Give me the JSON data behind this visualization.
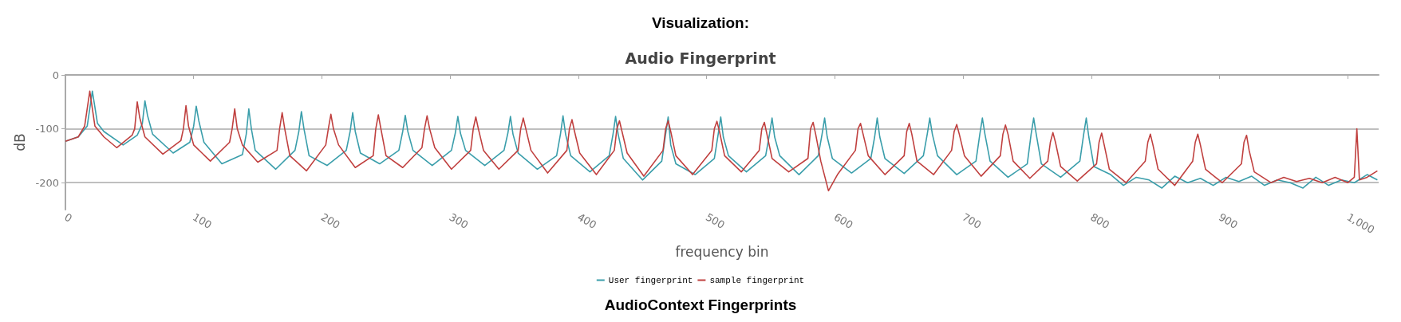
{
  "chart_data": {
    "type": "line",
    "title": "Visualization:",
    "subtitle": "Audio Fingerprint",
    "xlabel": "frequency bin",
    "ylabel": "dB",
    "annotations": [
      "AudioContext Fingerprints"
    ],
    "xlim": [
      0,
      1024
    ],
    "xticks": [
      0,
      100,
      200,
      300,
      400,
      500,
      600,
      700,
      800,
      900,
      {
        "value": 1000,
        "label": "1,000"
      }
    ],
    "ylim": [
      -250,
      0
    ],
    "yticks": [
      0,
      -100,
      -200
    ],
    "grid": "y",
    "legend": "bottom",
    "marker": "none",
    "line_style": "solid",
    "series": [
      {
        "name": "User fingerprint",
        "color": "#3a9eab",
        "x": [
          0,
          10,
          17,
          21,
          25,
          30,
          45,
          56,
          60,
          62,
          64,
          68,
          84,
          97,
          100,
          102,
          104,
          108,
          122,
          138,
          141,
          143,
          145,
          148,
          164,
          179,
          182,
          184,
          186,
          190,
          204,
          219,
          222,
          224,
          226,
          230,
          245,
          260,
          263,
          265,
          267,
          271,
          286,
          301,
          304,
          306,
          308,
          312,
          327,
          342,
          345,
          347,
          349,
          353,
          368,
          383,
          386,
          388,
          390,
          394,
          409,
          424,
          427,
          429,
          431,
          435,
          450,
          465,
          468,
          470,
          472,
          476,
          491,
          506,
          509,
          511,
          513,
          517,
          531,
          546,
          549,
          551,
          553,
          557,
          572,
          587,
          590,
          592,
          594,
          598,
          613,
          628,
          631,
          633,
          635,
          639,
          654,
          669,
          672,
          674,
          676,
          680,
          695,
          710,
          713,
          715,
          717,
          721,
          735,
          750,
          753,
          755,
          757,
          761,
          776,
          791,
          794,
          796,
          798,
          802,
          815,
          825,
          835,
          845,
          855,
          865,
          875,
          885,
          895,
          905,
          915,
          925,
          935,
          945,
          955,
          965,
          975,
          985,
          995,
          1005,
          1015,
          1023
        ],
        "values": [
          -123,
          -115,
          -95,
          -30,
          -90,
          -105,
          -130,
          -112,
          -90,
          -48,
          -75,
          -110,
          -145,
          -125,
          -95,
          -58,
          -85,
          -125,
          -165,
          -148,
          -110,
          -63,
          -100,
          -140,
          -175,
          -140,
          -105,
          -68,
          -100,
          -150,
          -168,
          -140,
          -105,
          -70,
          -105,
          -145,
          -165,
          -140,
          -105,
          -75,
          -105,
          -140,
          -168,
          -140,
          -108,
          -77,
          -108,
          -140,
          -168,
          -140,
          -108,
          -77,
          -110,
          -145,
          -175,
          -150,
          -110,
          -76,
          -110,
          -150,
          -180,
          -150,
          -110,
          -77,
          -110,
          -155,
          -195,
          -160,
          -110,
          -78,
          -130,
          -165,
          -185,
          -155,
          -110,
          -78,
          -115,
          -150,
          -180,
          -150,
          -110,
          -80,
          -115,
          -150,
          -185,
          -150,
          -110,
          -80,
          -115,
          -155,
          -182,
          -155,
          -115,
          -80,
          -115,
          -155,
          -183,
          -150,
          -110,
          -80,
          -110,
          -150,
          -185,
          -160,
          -110,
          -80,
          -110,
          -160,
          -190,
          -165,
          -110,
          -80,
          -110,
          -165,
          -190,
          -160,
          -110,
          -80,
          -115,
          -170,
          -185,
          -205,
          -190,
          -195,
          -210,
          -188,
          -200,
          -192,
          -205,
          -190,
          -198,
          -188,
          -205,
          -195,
          -200,
          -210,
          -190,
          -205,
          -195,
          -200,
          -185,
          -195
        ]
      },
      {
        "name": "sample fingerprint",
        "color": "#c0403f",
        "x": [
          0,
          10,
          15,
          19,
          23,
          30,
          40,
          52,
          54,
          56,
          58,
          62,
          76,
          90,
          92,
          94,
          96,
          100,
          113,
          128,
          130,
          132,
          134,
          138,
          150,
          165,
          167,
          169,
          171,
          175,
          188,
          203,
          205,
          207,
          209,
          213,
          226,
          240,
          242,
          244,
          246,
          250,
          263,
          278,
          280,
          282,
          284,
          288,
          301,
          316,
          318,
          320,
          322,
          326,
          338,
          353,
          355,
          357,
          359,
          363,
          376,
          391,
          393,
          395,
          397,
          401,
          414,
          428,
          430,
          432,
          434,
          438,
          451,
          466,
          468,
          470,
          472,
          476,
          489,
          504,
          506,
          508,
          510,
          514,
          527,
          541,
          543,
          545,
          547,
          551,
          564,
          579,
          581,
          583,
          585,
          589,
          595,
          602,
          616,
          618,
          620,
          622,
          626,
          639,
          654,
          656,
          658,
          660,
          664,
          677,
          691,
          693,
          695,
          697,
          701,
          714,
          729,
          731,
          733,
          735,
          739,
          752,
          766,
          768,
          770,
          772,
          776,
          789,
          804,
          806,
          808,
          810,
          814,
          827,
          842,
          844,
          846,
          848,
          852,
          865,
          879,
          881,
          883,
          885,
          889,
          902,
          917,
          919,
          921,
          923,
          927,
          940,
          950,
          960,
          970,
          980,
          990,
          1000,
          1005,
          1007,
          1009,
          1015,
          1023
        ],
        "values": [
          -123,
          -115,
          -95,
          -30,
          -95,
          -115,
          -135,
          -112,
          -100,
          -50,
          -80,
          -115,
          -147,
          -122,
          -100,
          -57,
          -95,
          -130,
          -160,
          -125,
          -100,
          -63,
          -100,
          -130,
          -162,
          -140,
          -100,
          -70,
          -100,
          -150,
          -178,
          -130,
          -100,
          -73,
          -100,
          -130,
          -172,
          -150,
          -100,
          -74,
          -100,
          -150,
          -172,
          -135,
          -100,
          -76,
          -100,
          -135,
          -175,
          -140,
          -100,
          -78,
          -100,
          -140,
          -175,
          -140,
          -100,
          -80,
          -100,
          -140,
          -182,
          -140,
          -100,
          -83,
          -105,
          -145,
          -185,
          -140,
          -100,
          -85,
          -105,
          -145,
          -188,
          -140,
          -100,
          -85,
          -105,
          -150,
          -185,
          -140,
          -100,
          -86,
          -105,
          -150,
          -180,
          -140,
          -100,
          -88,
          -110,
          -155,
          -180,
          -155,
          -100,
          -88,
          -110,
          -160,
          -215,
          -185,
          -140,
          -100,
          -90,
          -110,
          -150,
          -185,
          -150,
          -105,
          -90,
          -110,
          -160,
          -185,
          -140,
          -105,
          -92,
          -110,
          -150,
          -188,
          -150,
          -110,
          -93,
          -110,
          -160,
          -192,
          -160,
          -125,
          -107,
          -125,
          -170,
          -197,
          -165,
          -125,
          -108,
          -130,
          -175,
          -200,
          -160,
          -125,
          -110,
          -130,
          -175,
          -205,
          -160,
          -125,
          -110,
          -130,
          -175,
          -200,
          -165,
          -125,
          -112,
          -140,
          -180,
          -200,
          -190,
          -198,
          -192,
          -200,
          -190,
          -200,
          -190,
          -100,
          -195,
          -190,
          -178
        ]
      }
    ]
  }
}
